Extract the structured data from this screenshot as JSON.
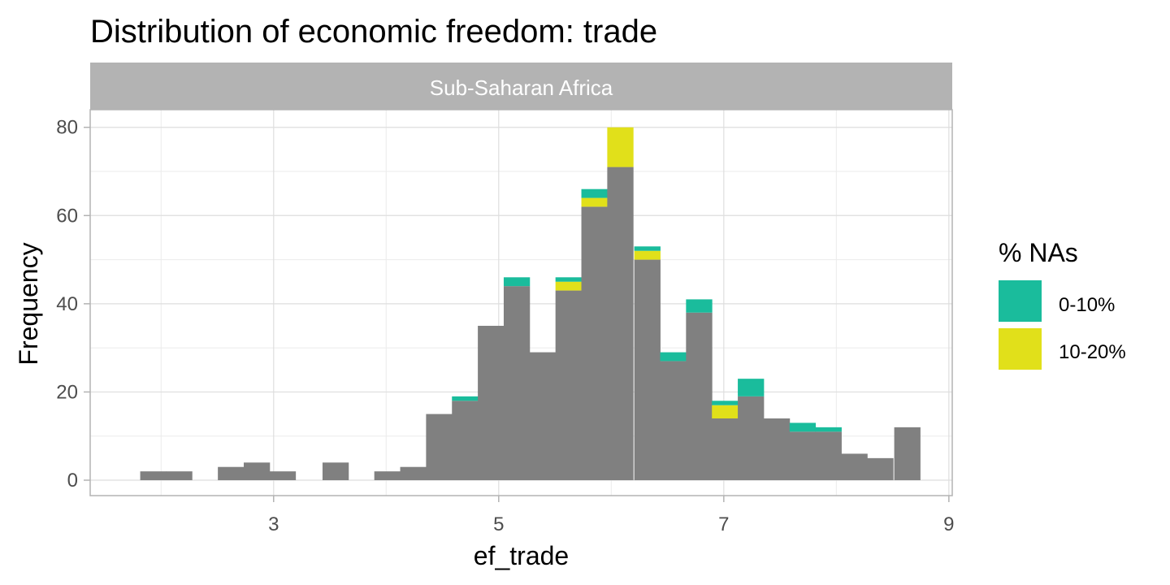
{
  "chart_data": {
    "type": "bar",
    "title": "Distribution of economic freedom: trade",
    "facet_label": "Sub-Saharan Africa",
    "xlabel": "ef_trade",
    "ylabel": "Frequency",
    "xlim": [
      1.37,
      9.03
    ],
    "ylim": [
      -3.5,
      84
    ],
    "x_ticks": [
      3,
      5,
      7,
      9
    ],
    "y_ticks": [
      0,
      20,
      40,
      60,
      80
    ],
    "bin_width": 0.231,
    "grid": true,
    "legend_position": "right",
    "legend": {
      "title": "% NAs",
      "items": [
        {
          "label": "0-10%",
          "color": "#1ABC9C"
        },
        {
          "label": "10-20%",
          "color": "#E1E01A"
        }
      ]
    },
    "base_color": "#808080",
    "bins": [
      {
        "x": 1.93,
        "base": 2,
        "na_10_20": 0,
        "na_0_10": 0
      },
      {
        "x": 2.16,
        "base": 2,
        "na_10_20": 0,
        "na_0_10": 0
      },
      {
        "x": 2.39,
        "base": 0,
        "na_10_20": 0,
        "na_0_10": 0
      },
      {
        "x": 2.62,
        "base": 3,
        "na_10_20": 0,
        "na_0_10": 0
      },
      {
        "x": 2.85,
        "base": 4,
        "na_10_20": 0,
        "na_0_10": 0
      },
      {
        "x": 3.08,
        "base": 2,
        "na_10_20": 0,
        "na_0_10": 0
      },
      {
        "x": 3.31,
        "base": 0,
        "na_10_20": 0,
        "na_0_10": 0
      },
      {
        "x": 3.55,
        "base": 4,
        "na_10_20": 0,
        "na_0_10": 0
      },
      {
        "x": 3.78,
        "base": 0,
        "na_10_20": 0,
        "na_0_10": 0
      },
      {
        "x": 4.01,
        "base": 2,
        "na_10_20": 0,
        "na_0_10": 0
      },
      {
        "x": 4.24,
        "base": 3,
        "na_10_20": 0,
        "na_0_10": 0
      },
      {
        "x": 4.47,
        "base": 15,
        "na_10_20": 0,
        "na_0_10": 0
      },
      {
        "x": 4.7,
        "base": 18,
        "na_10_20": 0,
        "na_0_10": 1
      },
      {
        "x": 4.93,
        "base": 35,
        "na_10_20": 0,
        "na_0_10": 0
      },
      {
        "x": 5.16,
        "base": 44,
        "na_10_20": 0,
        "na_0_10": 2
      },
      {
        "x": 5.39,
        "base": 29,
        "na_10_20": 0,
        "na_0_10": 0
      },
      {
        "x": 5.62,
        "base": 43,
        "na_10_20": 2,
        "na_0_10": 1
      },
      {
        "x": 5.85,
        "base": 62,
        "na_10_20": 2,
        "na_0_10": 2
      },
      {
        "x": 6.08,
        "base": 71,
        "na_10_20": 9,
        "na_0_10": 0
      },
      {
        "x": 6.32,
        "base": 50,
        "na_10_20": 2,
        "na_0_10": 1
      },
      {
        "x": 6.55,
        "base": 27,
        "na_10_20": 0,
        "na_0_10": 2
      },
      {
        "x": 6.78,
        "base": 38,
        "na_10_20": 0,
        "na_0_10": 3
      },
      {
        "x": 7.01,
        "base": 14,
        "na_10_20": 3,
        "na_0_10": 1
      },
      {
        "x": 7.24,
        "base": 19,
        "na_10_20": 0,
        "na_0_10": 4
      },
      {
        "x": 7.47,
        "base": 14,
        "na_10_20": 0,
        "na_0_10": 0
      },
      {
        "x": 7.7,
        "base": 11,
        "na_10_20": 0,
        "na_0_10": 2
      },
      {
        "x": 7.93,
        "base": 11,
        "na_10_20": 0,
        "na_0_10": 1
      },
      {
        "x": 8.16,
        "base": 6,
        "na_10_20": 0,
        "na_0_10": 0
      },
      {
        "x": 8.39,
        "base": 5,
        "na_10_20": 0,
        "na_0_10": 0
      },
      {
        "x": 8.63,
        "base": 12,
        "na_10_20": 0,
        "na_0_10": 0
      }
    ]
  }
}
